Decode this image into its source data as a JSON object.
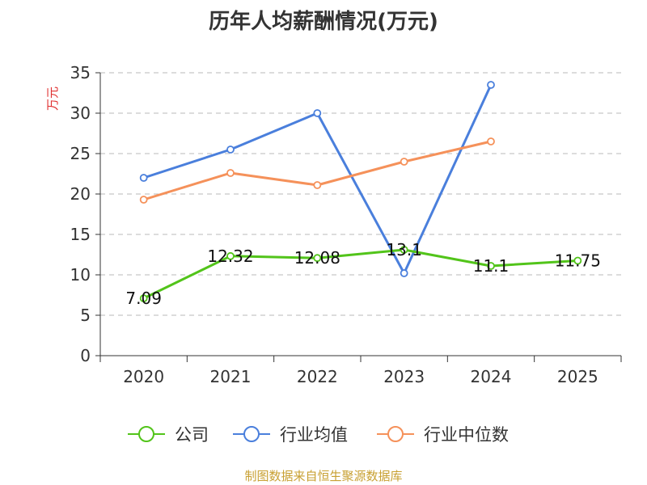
{
  "chart_data": {
    "type": "line",
    "title": "历年人均薪酬情况(万元)",
    "ylabel": "万元",
    "xlabel": "",
    "ylim": [
      0,
      35
    ],
    "yticks": [
      0,
      5,
      10,
      15,
      20,
      25,
      30,
      35
    ],
    "categories": [
      "2020",
      "2021",
      "2022",
      "2023",
      "2024",
      "2025"
    ],
    "grid": true,
    "legend_position": "bottom",
    "series": [
      {
        "name": "公司",
        "color": "#52c41a",
        "values": [
          7.09,
          12.32,
          12.08,
          13.1,
          11.1,
          11.75
        ],
        "labels": [
          "7.09",
          "12.32",
          "12.08",
          "13.1",
          "11.1",
          "11.75"
        ]
      },
      {
        "name": "行业均值",
        "color": "#4a7fdc",
        "values": [
          22.0,
          25.5,
          30.0,
          10.2,
          33.5,
          null
        ]
      },
      {
        "name": "行业中位数",
        "color": "#f5915a",
        "values": [
          19.3,
          22.6,
          21.1,
          24.0,
          26.5,
          null
        ]
      }
    ]
  },
  "watermark": "制图数据来自恒生聚源数据库"
}
